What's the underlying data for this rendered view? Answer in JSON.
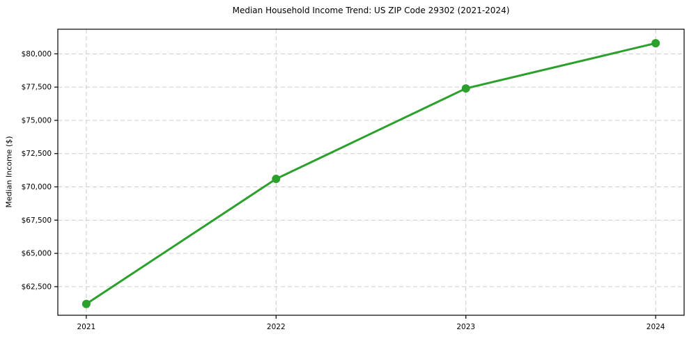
{
  "chart_data": {
    "type": "line",
    "title": "Median Household Income Trend: US ZIP Code 29302 (2021-2024)",
    "xlabel": "",
    "ylabel": "Median Income ($)",
    "x": [
      2021,
      2022,
      2023,
      2024
    ],
    "x_tick_labels": [
      "2021",
      "2022",
      "2023",
      "2024"
    ],
    "series": [
      {
        "name": "Median Household Income",
        "values": [
          61200,
          70600,
          77400,
          80800
        ],
        "color": "#2ca02c",
        "marker": "circle",
        "marker_radius": 6,
        "line_width": 3
      }
    ],
    "y_ticks": [
      62500,
      65000,
      67500,
      70000,
      72500,
      75000,
      77500,
      80000
    ],
    "y_tick_labels": [
      "$62,500",
      "$65,000",
      "$67,500",
      "$70,000",
      "$72,500",
      "$75,000",
      "$77,500",
      "$80,000"
    ],
    "xlim": [
      2020.85,
      2024.15
    ],
    "ylim": [
      60350,
      81850
    ],
    "grid": true,
    "grid_style": "dashed",
    "legend": "none",
    "colors": {
      "line": "#2ca02c",
      "grid": "#cccccc",
      "axis": "#000000",
      "text": "#000000",
      "background": "#ffffff"
    }
  }
}
